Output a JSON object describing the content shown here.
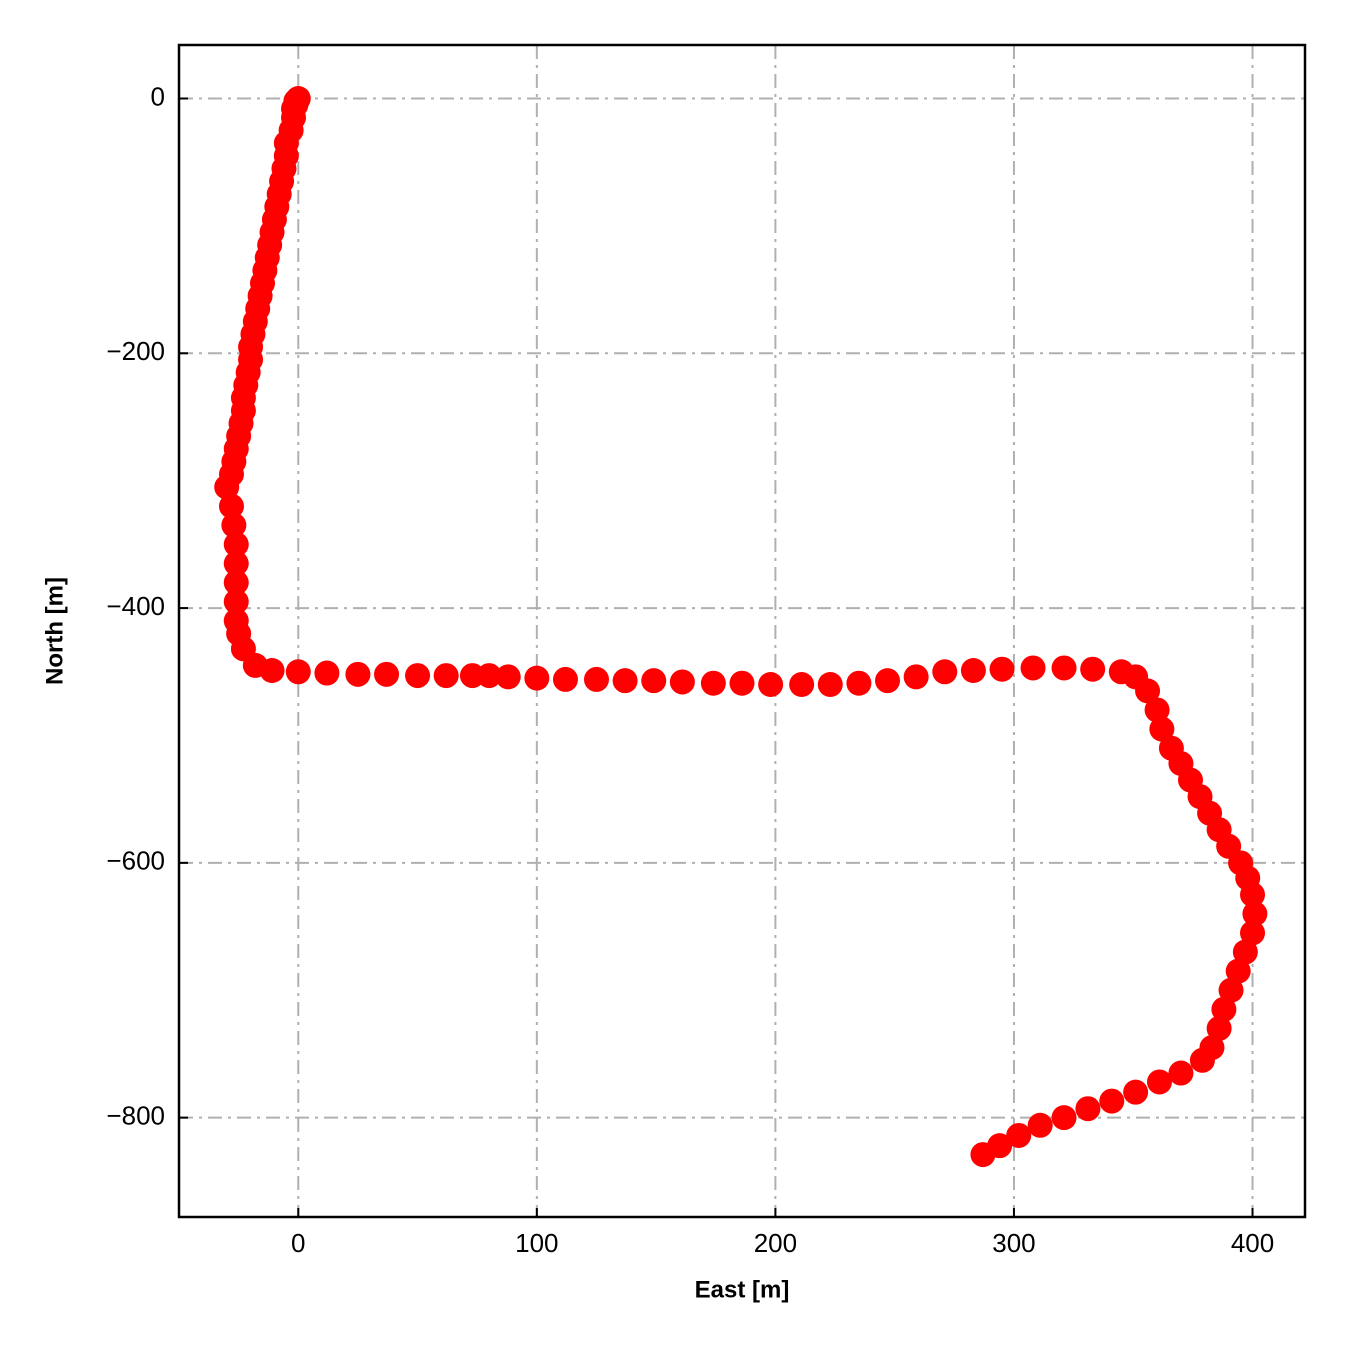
{
  "chart_data": {
    "type": "scatter",
    "xlabel": "East [m]",
    "ylabel": "North [m]",
    "color": "#ff0000",
    "grid": true,
    "xlim": [
      -50,
      422
    ],
    "ylim": [
      -878,
      42
    ],
    "xticks": [
      0,
      100,
      200,
      300,
      400
    ],
    "yticks": [
      0,
      {
        "value": -200,
        "label": "−200"
      },
      {
        "value": -400,
        "label": "−400"
      },
      {
        "value": -600,
        "label": "−600"
      },
      {
        "value": -800,
        "label": "−800"
      }
    ],
    "x": [
      0,
      -1,
      -2,
      -1,
      -2,
      -3,
      -5,
      -5,
      -6,
      -7,
      -8,
      -9,
      -10,
      -11,
      -12,
      -13,
      -14,
      -15,
      -16,
      -17,
      -18,
      -19,
      -20,
      -20,
      -21,
      -22,
      -23,
      -23,
      -24,
      -25,
      -26,
      -27,
      -28,
      -30,
      -28,
      -27,
      -26,
      -26,
      -26,
      -26,
      -26,
      -25,
      -23,
      -18,
      -11,
      0,
      12,
      25,
      37,
      50,
      62,
      73,
      80,
      88,
      100,
      112,
      125,
      137,
      149,
      161,
      174,
      186,
      198,
      211,
      223,
      235,
      247,
      259,
      271,
      283,
      295,
      308,
      321,
      333,
      345,
      351,
      356,
      360,
      362,
      366,
      370,
      374,
      378,
      382,
      386,
      390,
      395,
      398,
      400,
      401,
      400,
      397,
      394,
      391,
      388,
      386,
      383,
      379,
      370,
      361,
      351,
      341,
      331,
      321,
      311,
      302,
      294,
      287
    ],
    "y": [
      0,
      -2,
      -8,
      -5,
      -15,
      -25,
      -35,
      -45,
      -55,
      -65,
      -75,
      -85,
      -95,
      -105,
      -115,
      -125,
      -135,
      -145,
      -155,
      -165,
      -175,
      -185,
      -195,
      -205,
      -215,
      -225,
      -235,
      -245,
      -255,
      -265,
      -275,
      -285,
      -295,
      -305,
      -320,
      -335,
      -350,
      -365,
      -380,
      -395,
      -410,
      -420,
      -432,
      -445,
      -449,
      -450,
      -451,
      -452,
      -452,
      -453,
      -453,
      -453,
      -453,
      -454,
      -455,
      -456,
      -456,
      -457,
      -457,
      -458,
      -459,
      -459,
      -460,
      -460,
      -460,
      -459,
      -457,
      -454,
      -450,
      -449,
      -448,
      -447,
      -447,
      -448,
      -450,
      -454,
      -465,
      -480,
      -495,
      -510,
      -522,
      -535,
      -548,
      -561,
      -574,
      -587,
      -600,
      -612,
      -625,
      -640,
      -655,
      -670,
      -685,
      -700,
      -715,
      -730,
      -745,
      -755,
      -765,
      -772,
      -780,
      -787,
      -793,
      -800,
      -806,
      -814,
      -822,
      -829
    ]
  }
}
